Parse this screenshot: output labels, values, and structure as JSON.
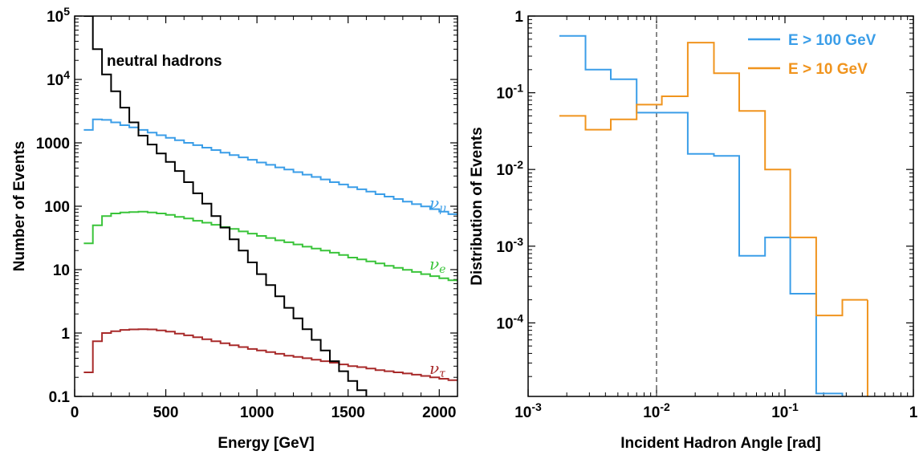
{
  "chart_data": [
    {
      "type": "line",
      "step": true,
      "xlabel": "Energy [GeV]",
      "ylabel": "Number of Events",
      "xlim": [
        0,
        2100
      ],
      "ylim": [
        0.1,
        100000
      ],
      "yscale": "log",
      "x_ticks": [
        "0",
        "500",
        "1000",
        "1500",
        "2000"
      ],
      "y_ticks": [
        "0.1",
        "1",
        "10",
        "100",
        "1000",
        "10^4",
        "10^5"
      ],
      "annotation": "neutral hadrons",
      "bin_edges": [
        50,
        100,
        150,
        200,
        250,
        300,
        350,
        400,
        450,
        500,
        550,
        600,
        650,
        700,
        750,
        800,
        850,
        900,
        950,
        1000,
        1050,
        1100,
        1150,
        1200,
        1250,
        1300,
        1350,
        1400,
        1450,
        1500,
        1550,
        1600,
        1650,
        1700,
        1750,
        1800,
        1850,
        1900,
        1950,
        2000,
        2050,
        2100
      ],
      "series": [
        {
          "name": "ν_μ",
          "label_main": "ν",
          "label_sub": "μ",
          "color": "#3b9ee8",
          "values": [
            1600,
            2350,
            2300,
            2100,
            1900,
            1750,
            1600,
            1450,
            1320,
            1200,
            1100,
            1000,
            920,
            840,
            770,
            700,
            640,
            590,
            540,
            490,
            450,
            410,
            380,
            345,
            315,
            290,
            265,
            240,
            220,
            200,
            185,
            170,
            155,
            142,
            130,
            118,
            108,
            99,
            90,
            82,
            75
          ]
        },
        {
          "name": "ν_e",
          "label_main": "ν",
          "label_sub": "e",
          "color": "#3ac43a",
          "values": [
            26,
            50,
            70,
            77,
            80,
            81,
            82,
            80,
            77,
            73,
            68,
            64,
            59,
            55,
            51,
            47,
            44,
            40,
            37,
            34,
            31.5,
            29,
            27,
            25,
            23,
            21.5,
            20,
            18.5,
            17,
            15.5,
            14.5,
            13.5,
            12.5,
            11.5,
            10.7,
            9.9,
            9.2,
            8.5,
            7.9,
            7.3,
            6.8
          ]
        },
        {
          "name": "ν_τ",
          "label_main": "ν",
          "label_sub": "τ",
          "color": "#a82a2a",
          "values": [
            0.24,
            0.74,
            1.0,
            1.07,
            1.12,
            1.14,
            1.15,
            1.14,
            1.1,
            1.05,
            0.98,
            0.92,
            0.86,
            0.8,
            0.74,
            0.69,
            0.64,
            0.6,
            0.56,
            0.53,
            0.5,
            0.47,
            0.44,
            0.42,
            0.4,
            0.38,
            0.36,
            0.34,
            0.32,
            0.3,
            0.29,
            0.275,
            0.26,
            0.25,
            0.24,
            0.23,
            0.22,
            0.21,
            0.2,
            0.19,
            0.18
          ]
        },
        {
          "name": "neutral hadrons",
          "color": "#000000",
          "values": [
            100000,
            30000,
            12000,
            6500,
            3600,
            2100,
            1300,
            940,
            680,
            500,
            360,
            240,
            160,
            110,
            70,
            46,
            30,
            20,
            13,
            8.5,
            5.7,
            3.8,
            2.5,
            1.7,
            1.15,
            0.78,
            0.53,
            0.36,
            0.25,
            0.175,
            0.125,
            0.095,
            0.05
          ]
        }
      ]
    },
    {
      "type": "line",
      "step": true,
      "xlabel": "Incident Hadron Angle [rad]",
      "ylabel": "Distribution of Events",
      "xscale": "log",
      "yscale": "log",
      "xlim": [
        0.001,
        1
      ],
      "ylim": [
        1.1e-05,
        1
      ],
      "x_ticks": [
        "10^-3",
        "10^-2",
        "10^-1",
        "1"
      ],
      "y_ticks": [
        "10^-4",
        "10^-3",
        "10^-2",
        "10^-1",
        "1"
      ],
      "reference_line": {
        "x": 0.01,
        "style": "dashed",
        "color": "#888888"
      },
      "legend_position": "top-right",
      "bin_edges": [
        0.00175,
        0.0028,
        0.0044,
        0.007,
        0.011,
        0.0175,
        0.028,
        0.044,
        0.07,
        0.11,
        0.175,
        0.28,
        0.44
      ],
      "series": [
        {
          "name": "E > 100 GeV",
          "color": "#3b9ee8",
          "values": [
            0.55,
            0.2,
            0.15,
            0.055,
            0.055,
            0.016,
            0.015,
            0.00075,
            0.0013,
            0.00024,
            1.2e-05,
            1e-05
          ]
        },
        {
          "name": "E > 10 GeV",
          "color": "#f0941e",
          "values": [
            0.05,
            0.033,
            0.045,
            0.07,
            0.09,
            0.45,
            0.18,
            0.058,
            0.01,
            0.0013,
            0.000125,
            0.0002
          ]
        }
      ]
    }
  ]
}
